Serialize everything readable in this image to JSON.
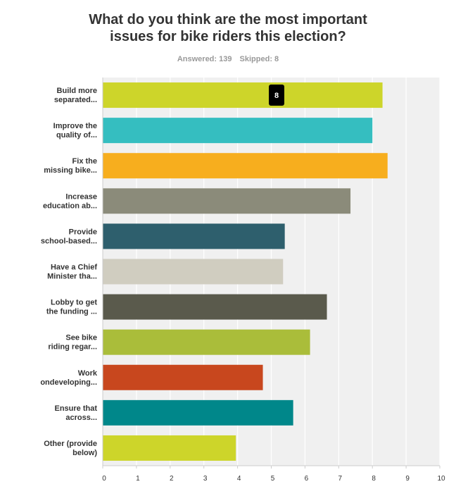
{
  "header": {
    "title_line1": "What do you think are the most important",
    "title_line2": "issues for bike riders this election?",
    "answered": "Answered: 139",
    "skipped": "Skipped: 8"
  },
  "tooltip": {
    "category_index": 0,
    "value": "8"
  },
  "chart_data": {
    "type": "bar",
    "orientation": "horizontal",
    "title": "What do you think are the most important issues for bike riders this election?",
    "xlabel": "",
    "ylabel": "",
    "xlim": [
      0,
      10
    ],
    "ticks": [
      "0",
      "1",
      "2",
      "3",
      "4",
      "5",
      "6",
      "7",
      "8",
      "9",
      "10"
    ],
    "grid": true,
    "categories": [
      [
        "Build more",
        "separated..."
      ],
      [
        "Improve the",
        "quality of..."
      ],
      [
        "Fix the",
        "missing bike..."
      ],
      [
        "Increase",
        "education ab..."
      ],
      [
        "Provide",
        "school-based..."
      ],
      [
        "Have a Chief",
        "Minister tha..."
      ],
      [
        "Lobby to get",
        "the funding ..."
      ],
      [
        "See bike",
        "riding regar..."
      ],
      [
        "Work",
        "ondeveloping..."
      ],
      [
        "Ensure that",
        "across..."
      ],
      [
        "Other (provide",
        "below)"
      ]
    ],
    "values": [
      8.3,
      8.0,
      8.45,
      7.35,
      5.4,
      5.35,
      6.65,
      6.15,
      4.75,
      5.65,
      3.95
    ],
    "colors": [
      "#cdd52a",
      "#35bec0",
      "#f7ae1e",
      "#8b8b7a",
      "#2e5f6d",
      "#d0cdc0",
      "#5a5a4c",
      "#aabd3a",
      "#c8471e",
      "#00878a",
      "#cdd52a"
    ]
  }
}
